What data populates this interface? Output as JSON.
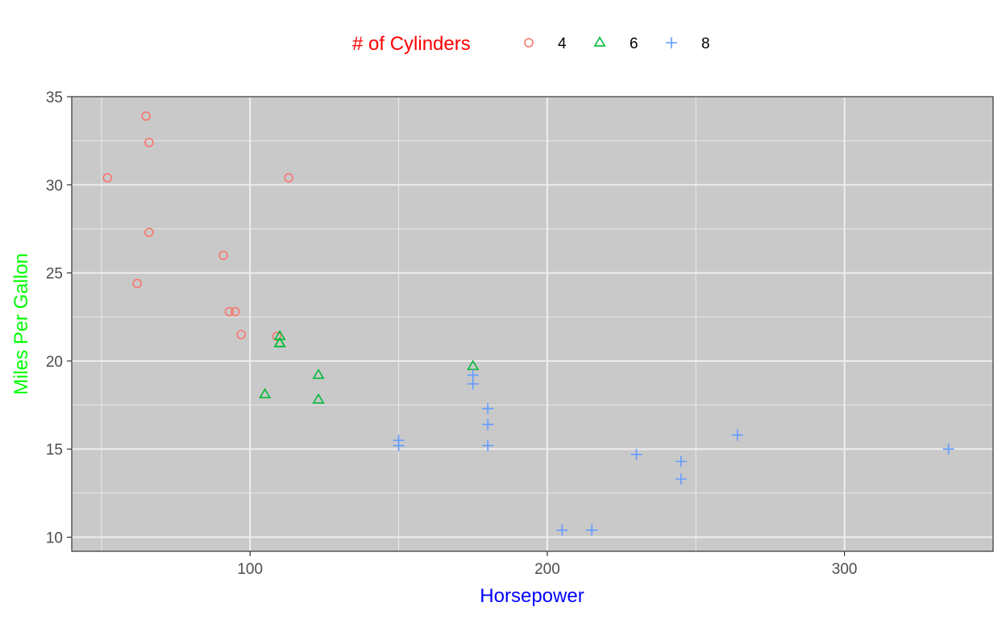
{
  "chart_data": {
    "type": "scatter",
    "title": "",
    "xlabel": "Horsepower",
    "ylabel": "Miles Per Gallon",
    "xlim": [
      40,
      350
    ],
    "ylim": [
      9.2,
      35
    ],
    "x_ticks": [
      100,
      200,
      300
    ],
    "y_ticks": [
      10,
      15,
      20,
      25,
      30,
      35
    ],
    "grid": true,
    "panel_background": "#C9C9C9",
    "legend": {
      "title": "# of Cylinders",
      "position": "top",
      "entries": [
        "4",
        "6",
        "8"
      ]
    },
    "colors": {
      "xlabel": "#0000FF",
      "ylabel": "#00FF00",
      "legend_title": "#FF0000"
    },
    "series": [
      {
        "name": "4",
        "marker": "circle",
        "color": "#F8766D",
        "points": [
          {
            "x": 93,
            "y": 22.8
          },
          {
            "x": 62,
            "y": 24.4
          },
          {
            "x": 95,
            "y": 22.8
          },
          {
            "x": 66,
            "y": 32.4
          },
          {
            "x": 52,
            "y": 30.4
          },
          {
            "x": 65,
            "y": 33.9
          },
          {
            "x": 97,
            "y": 21.5
          },
          {
            "x": 66,
            "y": 27.3
          },
          {
            "x": 91,
            "y": 26.0
          },
          {
            "x": 113,
            "y": 30.4
          },
          {
            "x": 109,
            "y": 21.4
          }
        ]
      },
      {
        "name": "6",
        "marker": "triangle",
        "color": "#00BA38",
        "points": [
          {
            "x": 110,
            "y": 21.0
          },
          {
            "x": 110,
            "y": 21.0
          },
          {
            "x": 110,
            "y": 21.4
          },
          {
            "x": 105,
            "y": 18.1
          },
          {
            "x": 123,
            "y": 19.2
          },
          {
            "x": 123,
            "y": 17.8
          },
          {
            "x": 175,
            "y": 19.7
          }
        ]
      },
      {
        "name": "8",
        "marker": "plus",
        "color": "#619CFF",
        "points": [
          {
            "x": 175,
            "y": 18.7
          },
          {
            "x": 245,
            "y": 14.3
          },
          {
            "x": 180,
            "y": 16.4
          },
          {
            "x": 180,
            "y": 17.3
          },
          {
            "x": 180,
            "y": 15.2
          },
          {
            "x": 205,
            "y": 10.4
          },
          {
            "x": 215,
            "y": 10.4
          },
          {
            "x": 230,
            "y": 14.7
          },
          {
            "x": 150,
            "y": 15.5
          },
          {
            "x": 150,
            "y": 15.2
          },
          {
            "x": 245,
            "y": 13.3
          },
          {
            "x": 175,
            "y": 19.2
          },
          {
            "x": 264,
            "y": 15.8
          },
          {
            "x": 335,
            "y": 15.0
          }
        ]
      }
    ]
  }
}
